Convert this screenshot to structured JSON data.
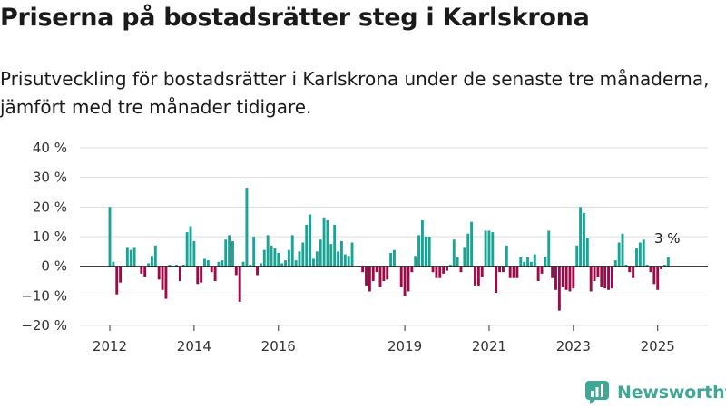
{
  "header": {
    "title": "Priserna på bostadsrätter steg i Karlskrona",
    "subtitle": "Prisutveckling för bostadsrätter i Karlskrona under de senaste tre månaderna, jämfört med tre månader tidigare."
  },
  "brand": {
    "name": "Newsworthy"
  },
  "colors": {
    "positive": "#18a596",
    "negative": "#9c0b48",
    "grid": "#dddddd",
    "zero_line": "#222222",
    "brand": "#3fa894"
  },
  "chart_data": {
    "type": "bar",
    "ylim": [
      -20,
      40
    ],
    "y_ticks": [
      -20,
      -10,
      0,
      10,
      20,
      30,
      40
    ],
    "y_tick_labels": [
      "−20 %",
      "−10 %",
      "0 %",
      "10 %",
      "20 %",
      "30 %",
      "40 %"
    ],
    "x_ticks": [
      {
        "label": "2012",
        "x": "2012-01"
      },
      {
        "label": "2014",
        "x": "2014-01"
      },
      {
        "label": "2016",
        "x": "2016-01"
      },
      {
        "label": "2019",
        "x": "2019-01"
      },
      {
        "label": "2021",
        "x": "2021-01"
      },
      {
        "label": "2023",
        "x": "2023-01"
      },
      {
        "label": "2025",
        "x": "2025-01"
      }
    ],
    "x_start": "2012-01",
    "annotation": {
      "text": "3 %",
      "x": "2025-04"
    },
    "grid": true,
    "legend": "none",
    "series": [
      {
        "x": "2012-01",
        "value": 20
      },
      {
        "x": "2012-02",
        "value": 1.5
      },
      {
        "x": "2012-03",
        "value": -9.5
      },
      {
        "x": "2012-04",
        "value": -5.5
      },
      {
        "x": "2012-06",
        "value": 6.5
      },
      {
        "x": "2012-07",
        "value": 5.5
      },
      {
        "x": "2012-08",
        "value": 6.5
      },
      {
        "x": "2012-10",
        "value": -2.5
      },
      {
        "x": "2012-11",
        "value": -3.5
      },
      {
        "x": "2012-12",
        "value": 1
      },
      {
        "x": "2013-01",
        "value": 3.5
      },
      {
        "x": "2013-02",
        "value": 7
      },
      {
        "x": "2013-03",
        "value": -4.5
      },
      {
        "x": "2013-04",
        "value": -8
      },
      {
        "x": "2013-05",
        "value": -11
      },
      {
        "x": "2013-06",
        "value": 0.5
      },
      {
        "x": "2013-08",
        "value": 0.5
      },
      {
        "x": "2013-09",
        "value": -5
      },
      {
        "x": "2013-10",
        "value": 0.5
      },
      {
        "x": "2013-11",
        "value": 11.5
      },
      {
        "x": "2013-12",
        "value": 13.5
      },
      {
        "x": "2014-01",
        "value": 8.5
      },
      {
        "x": "2014-02",
        "value": -6
      },
      {
        "x": "2014-03",
        "value": -5.5
      },
      {
        "x": "2014-04",
        "value": 2.5
      },
      {
        "x": "2014-05",
        "value": 2
      },
      {
        "x": "2014-06",
        "value": -2
      },
      {
        "x": "2014-07",
        "value": -5
      },
      {
        "x": "2014-08",
        "value": 1.5
      },
      {
        "x": "2014-09",
        "value": 2
      },
      {
        "x": "2014-10",
        "value": 9
      },
      {
        "x": "2014-11",
        "value": 10.5
      },
      {
        "x": "2014-12",
        "value": 8.5
      },
      {
        "x": "2015-01",
        "value": -3
      },
      {
        "x": "2015-02",
        "value": -12
      },
      {
        "x": "2015-03",
        "value": 1.5
      },
      {
        "x": "2015-04",
        "value": 26.5
      },
      {
        "x": "2015-05",
        "value": 0.5
      },
      {
        "x": "2015-06",
        "value": 10
      },
      {
        "x": "2015-07",
        "value": -3
      },
      {
        "x": "2015-08",
        "value": 1
      },
      {
        "x": "2015-09",
        "value": 5.5
      },
      {
        "x": "2015-10",
        "value": 10.5
      },
      {
        "x": "2015-11",
        "value": 7
      },
      {
        "x": "2015-12",
        "value": 6
      },
      {
        "x": "2016-01",
        "value": 4.5
      },
      {
        "x": "2016-02",
        "value": 1
      },
      {
        "x": "2016-03",
        "value": 2
      },
      {
        "x": "2016-04",
        "value": 5.5
      },
      {
        "x": "2016-05",
        "value": 10.5
      },
      {
        "x": "2016-06",
        "value": 2
      },
      {
        "x": "2016-07",
        "value": 5
      },
      {
        "x": "2016-08",
        "value": 8
      },
      {
        "x": "2016-09",
        "value": 14
      },
      {
        "x": "2016-10",
        "value": 17.5
      },
      {
        "x": "2016-11",
        "value": 2.5
      },
      {
        "x": "2016-12",
        "value": 5
      },
      {
        "x": "2017-01",
        "value": 9
      },
      {
        "x": "2017-02",
        "value": 16.5
      },
      {
        "x": "2017-03",
        "value": 15.5
      },
      {
        "x": "2017-04",
        "value": 7.5
      },
      {
        "x": "2017-05",
        "value": 14
      },
      {
        "x": "2017-06",
        "value": 5
      },
      {
        "x": "2017-07",
        "value": 8.5
      },
      {
        "x": "2017-08",
        "value": 4
      },
      {
        "x": "2017-09",
        "value": 3.5
      },
      {
        "x": "2017-10",
        "value": 8
      },
      {
        "x": "2018-01",
        "value": -2
      },
      {
        "x": "2018-02",
        "value": -6.5
      },
      {
        "x": "2018-03",
        "value": -8.5
      },
      {
        "x": "2018-04",
        "value": -5
      },
      {
        "x": "2018-05",
        "value": -2
      },
      {
        "x": "2018-06",
        "value": -7
      },
      {
        "x": "2018-07",
        "value": -5
      },
      {
        "x": "2018-08",
        "value": -4.5
      },
      {
        "x": "2018-09",
        "value": 4.5
      },
      {
        "x": "2018-10",
        "value": 5.5
      },
      {
        "x": "2018-12",
        "value": -7
      },
      {
        "x": "2019-01",
        "value": -10
      },
      {
        "x": "2019-02",
        "value": -8.5
      },
      {
        "x": "2019-03",
        "value": -2
      },
      {
        "x": "2019-04",
        "value": 3.5
      },
      {
        "x": "2019-05",
        "value": 10.5
      },
      {
        "x": "2019-06",
        "value": 15.5
      },
      {
        "x": "2019-07",
        "value": 10
      },
      {
        "x": "2019-08",
        "value": 10
      },
      {
        "x": "2019-09",
        "value": -2
      },
      {
        "x": "2019-10",
        "value": -4
      },
      {
        "x": "2019-11",
        "value": -4
      },
      {
        "x": "2019-12",
        "value": -2.5
      },
      {
        "x": "2020-01",
        "value": -1.5
      },
      {
        "x": "2020-02",
        "value": 0.5
      },
      {
        "x": "2020-03",
        "value": 9
      },
      {
        "x": "2020-04",
        "value": 3
      },
      {
        "x": "2020-05",
        "value": -2
      },
      {
        "x": "2020-06",
        "value": 6.5
      },
      {
        "x": "2020-07",
        "value": 11
      },
      {
        "x": "2020-08",
        "value": 15
      },
      {
        "x": "2020-09",
        "value": -6.5
      },
      {
        "x": "2020-10",
        "value": -6.5
      },
      {
        "x": "2020-11",
        "value": -3.5
      },
      {
        "x": "2020-12",
        "value": 12
      },
      {
        "x": "2021-01",
        "value": 12
      },
      {
        "x": "2021-02",
        "value": 11.5
      },
      {
        "x": "2021-03",
        "value": -9
      },
      {
        "x": "2021-04",
        "value": -2
      },
      {
        "x": "2021-05",
        "value": -2
      },
      {
        "x": "2021-06",
        "value": 7
      },
      {
        "x": "2021-07",
        "value": -4
      },
      {
        "x": "2021-08",
        "value": -4
      },
      {
        "x": "2021-09",
        "value": -4
      },
      {
        "x": "2021-10",
        "value": 3
      },
      {
        "x": "2021-11",
        "value": 1.5
      },
      {
        "x": "2021-12",
        "value": 3
      },
      {
        "x": "2022-01",
        "value": 1.5
      },
      {
        "x": "2022-02",
        "value": 4
      },
      {
        "x": "2022-03",
        "value": -5
      },
      {
        "x": "2022-04",
        "value": -2.5
      },
      {
        "x": "2022-05",
        "value": 3
      },
      {
        "x": "2022-06",
        "value": 12
      },
      {
        "x": "2022-07",
        "value": -4
      },
      {
        "x": "2022-08",
        "value": -8
      },
      {
        "x": "2022-09",
        "value": -15
      },
      {
        "x": "2022-10",
        "value": -7
      },
      {
        "x": "2022-11",
        "value": -8
      },
      {
        "x": "2022-12",
        "value": -8.5
      },
      {
        "x": "2023-01",
        "value": -7.5
      },
      {
        "x": "2023-02",
        "value": 7
      },
      {
        "x": "2023-03",
        "value": 20
      },
      {
        "x": "2023-04",
        "value": 18
      },
      {
        "x": "2023-05",
        "value": 9.5
      },
      {
        "x": "2023-06",
        "value": -8.5
      },
      {
        "x": "2023-07",
        "value": -5
      },
      {
        "x": "2023-08",
        "value": -3.5
      },
      {
        "x": "2023-09",
        "value": -7
      },
      {
        "x": "2023-10",
        "value": -7.5
      },
      {
        "x": "2023-11",
        "value": -8
      },
      {
        "x": "2023-12",
        "value": -7.5
      },
      {
        "x": "2024-01",
        "value": 2
      },
      {
        "x": "2024-02",
        "value": 8
      },
      {
        "x": "2024-03",
        "value": 11
      },
      {
        "x": "2024-04",
        "value": 0.5
      },
      {
        "x": "2024-05",
        "value": -2
      },
      {
        "x": "2024-06",
        "value": -4
      },
      {
        "x": "2024-07",
        "value": 6
      },
      {
        "x": "2024-08",
        "value": 8
      },
      {
        "x": "2024-09",
        "value": 9
      },
      {
        "x": "2024-10",
        "value": 0.5
      },
      {
        "x": "2024-11",
        "value": -2
      },
      {
        "x": "2024-12",
        "value": -6
      },
      {
        "x": "2025-01",
        "value": -8
      },
      {
        "x": "2025-02",
        "value": -1
      },
      {
        "x": "2025-03",
        "value": 0.5
      },
      {
        "x": "2025-04",
        "value": 3
      }
    ]
  }
}
